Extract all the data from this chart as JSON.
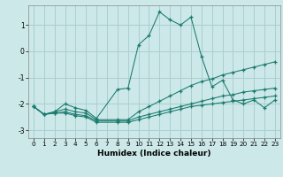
{
  "xlabel": "Humidex (Indice chaleur)",
  "xlim": [
    -0.5,
    23.5
  ],
  "ylim": [
    -3.3,
    1.75
  ],
  "xticks": [
    0,
    1,
    2,
    3,
    4,
    5,
    6,
    7,
    8,
    9,
    10,
    11,
    12,
    13,
    14,
    15,
    16,
    17,
    18,
    19,
    20,
    21,
    22,
    23
  ],
  "yticks": [
    -3,
    -2,
    -1,
    0,
    1
  ],
  "background_color": "#cce8e8",
  "grid_color": "#aacfcf",
  "line_color": "#1a7a6e",
  "lines": [
    {
      "x": [
        0,
        1,
        2,
        3,
        4,
        5,
        6,
        8,
        9,
        10,
        11,
        12,
        13,
        14,
        15,
        16,
        17,
        18,
        19,
        20,
        21,
        22,
        23
      ],
      "y": [
        -2.1,
        -2.4,
        -2.3,
        -2.0,
        -2.15,
        -2.25,
        -2.55,
        -1.45,
        -1.4,
        0.25,
        0.6,
        1.5,
        1.2,
        1.0,
        1.3,
        -0.2,
        -1.35,
        -1.1,
        -1.85,
        -2.0,
        -1.85,
        -2.15,
        -1.85
      ]
    },
    {
      "x": [
        0,
        1,
        2,
        3,
        4,
        5,
        6,
        8,
        9,
        10,
        11,
        12,
        13,
        14,
        15,
        16,
        17,
        18,
        19,
        20,
        21,
        22,
        23
      ],
      "y": [
        -2.1,
        -2.4,
        -2.3,
        -2.2,
        -2.3,
        -2.35,
        -2.6,
        -2.6,
        -2.6,
        -2.3,
        -2.1,
        -1.9,
        -1.7,
        -1.5,
        -1.3,
        -1.15,
        -1.05,
        -0.9,
        -0.8,
        -0.7,
        -0.6,
        -0.5,
        -0.4
      ]
    },
    {
      "x": [
        0,
        1,
        2,
        3,
        4,
        5,
        6,
        8,
        9,
        10,
        11,
        12,
        13,
        14,
        15,
        16,
        17,
        18,
        19,
        20,
        21,
        22,
        23
      ],
      "y": [
        -2.1,
        -2.4,
        -2.35,
        -2.3,
        -2.4,
        -2.45,
        -2.65,
        -2.65,
        -2.65,
        -2.5,
        -2.4,
        -2.3,
        -2.2,
        -2.1,
        -2.0,
        -1.9,
        -1.8,
        -1.7,
        -1.65,
        -1.55,
        -1.5,
        -1.45,
        -1.4
      ]
    },
    {
      "x": [
        0,
        1,
        2,
        3,
        4,
        5,
        6,
        8,
        9,
        10,
        11,
        12,
        13,
        14,
        15,
        16,
        17,
        18,
        19,
        20,
        21,
        22,
        23
      ],
      "y": [
        -2.1,
        -2.4,
        -2.35,
        -2.35,
        -2.45,
        -2.5,
        -2.7,
        -2.7,
        -2.7,
        -2.6,
        -2.5,
        -2.4,
        -2.3,
        -2.2,
        -2.1,
        -2.05,
        -2.0,
        -1.95,
        -1.9,
        -1.85,
        -1.8,
        -1.75,
        -1.7
      ]
    }
  ]
}
